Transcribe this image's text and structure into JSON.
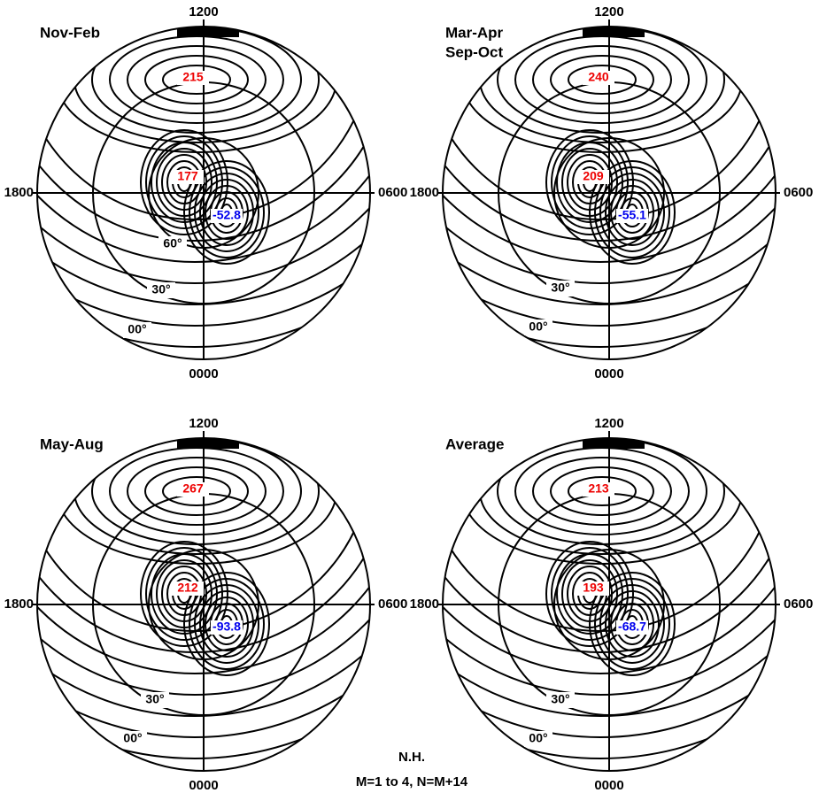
{
  "panels": [
    {
      "title_lines": [
        "Nov-Feb"
      ],
      "top": "1200",
      "left": "1800",
      "right": "0600",
      "bottom": "0000",
      "max": "215",
      "mid": "177",
      "min": "-52.8",
      "lat_labels": [
        "60°",
        "30°",
        "00°"
      ]
    },
    {
      "title_lines": [
        "Mar-Apr",
        "Sep-Oct"
      ],
      "top": "1200",
      "left": "1800",
      "right": "0600",
      "bottom": "0000",
      "max": "240",
      "mid": "209",
      "min": "-55.1",
      "lat_labels": [
        "30°",
        "00°"
      ]
    },
    {
      "title_lines": [
        "May-Aug"
      ],
      "top": "1200",
      "left": "1800",
      "right": "0600",
      "bottom": "0000",
      "max": "267",
      "mid": "212",
      "min": "-93.8",
      "lat_labels": [
        "30°",
        "00°"
      ]
    },
    {
      "title_lines": [
        "Average"
      ],
      "top": "1200",
      "left": "1800",
      "right": "0600",
      "bottom": "0000",
      "max": "213",
      "mid": "193",
      "min": "-68.7",
      "lat_labels": [
        "30°",
        "00°"
      ]
    }
  ],
  "footer": {
    "hemisphere": "N.H.",
    "model": "M=1 to 4, N=M+14"
  }
}
